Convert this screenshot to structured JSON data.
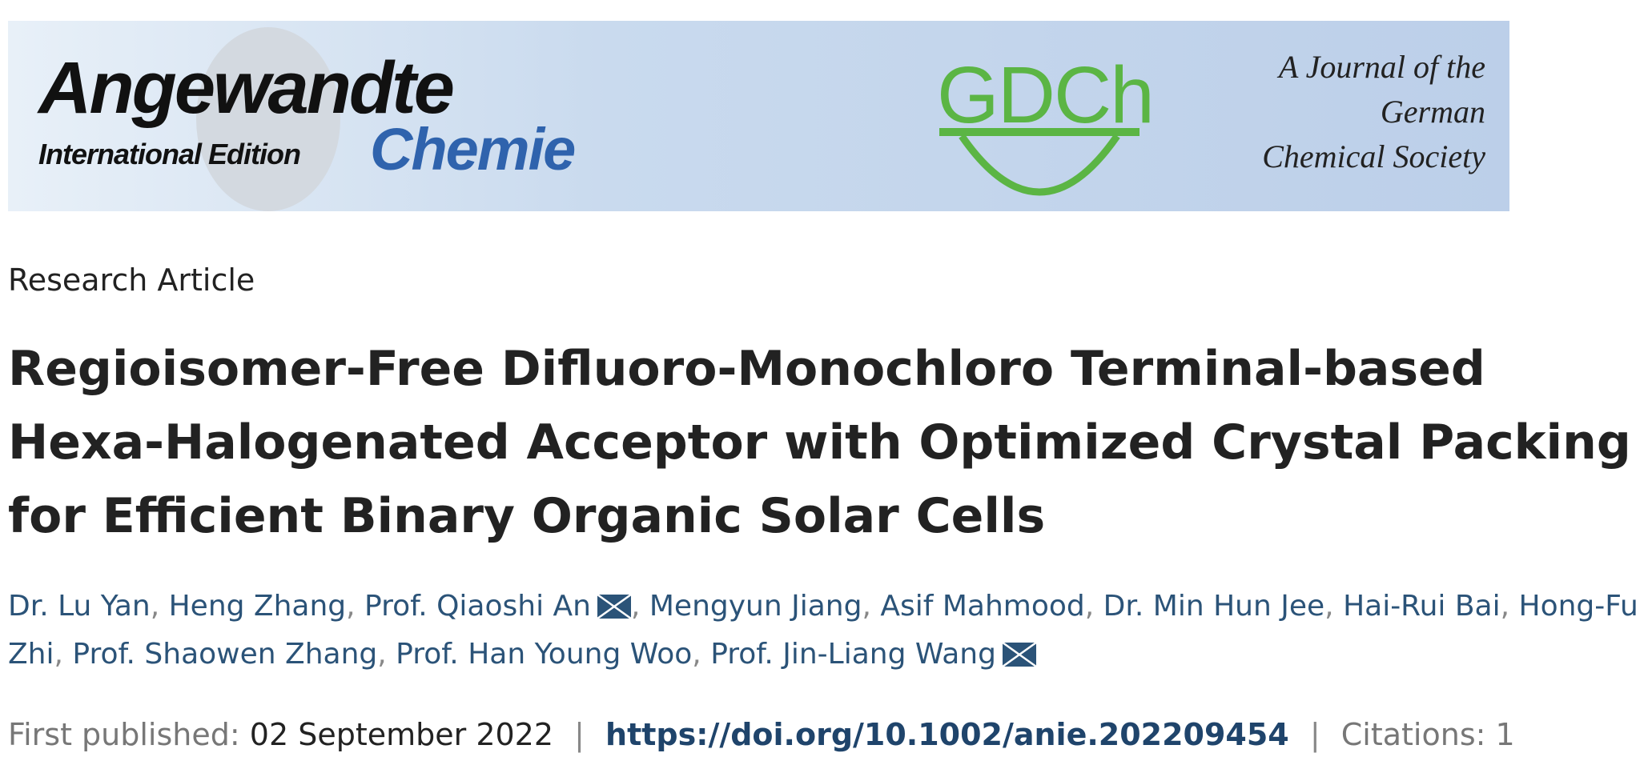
{
  "banner": {
    "journal_name_line1": "Angewandte",
    "journal_name_line2": "Chemie",
    "edition": "International Edition",
    "society_logo": "GDCh",
    "society_tagline": [
      "A Journal of the",
      "German",
      "Chemical Society"
    ]
  },
  "article": {
    "type": "Research Article",
    "title": "Regioisomer-Free Difluoro-Monochloro Terminal-based Hexa-Halogenated Acceptor with Optimized Crystal Packing for Efficient Binary Organic Solar Cells",
    "authors": [
      {
        "name": "Dr. Lu Yan",
        "corresponding": false
      },
      {
        "name": "Heng Zhang",
        "corresponding": false
      },
      {
        "name": "Prof. Qiaoshi An",
        "corresponding": true
      },
      {
        "name": "Mengyun Jiang",
        "corresponding": false
      },
      {
        "name": "Asif Mahmood",
        "corresponding": false
      },
      {
        "name": "Dr. Min Hun Jee",
        "corresponding": false
      },
      {
        "name": "Hai-Rui Bai",
        "corresponding": false
      },
      {
        "name": "Hong-Fu Zhi",
        "corresponding": false
      },
      {
        "name": "Prof. Shaowen Zhang",
        "corresponding": false
      },
      {
        "name": "Prof. Han Young Woo",
        "corresponding": false
      },
      {
        "name": "Prof. Jin-Liang Wang",
        "corresponding": true
      }
    ],
    "first_published_label": "First published:",
    "first_published_date": "02 September 2022",
    "doi": "https://doi.org/10.1002/anie.202209454",
    "citations_label": "Citations: 1",
    "separator": "|",
    "icons": {
      "corresponding": "envelope-icon"
    },
    "colors": {
      "author_link": "#2b5378",
      "doi_link": "#1f446b",
      "gdch_green": "#5bb544",
      "chemie_blue": "#2f63ad"
    }
  }
}
